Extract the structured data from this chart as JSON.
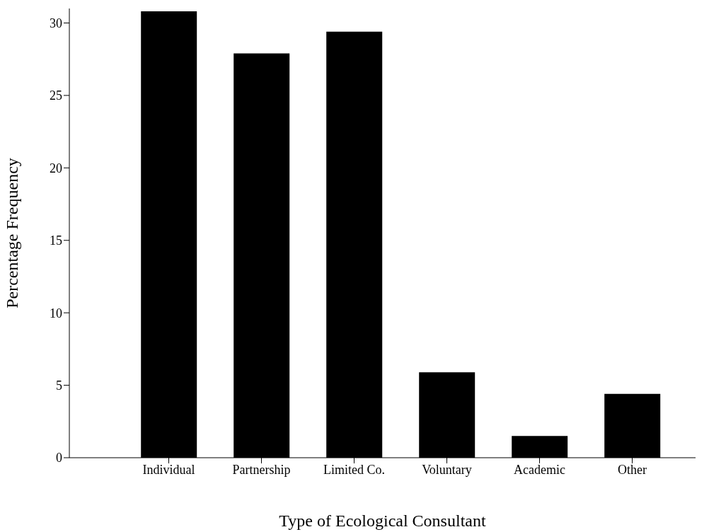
{
  "chart_data": {
    "type": "bar",
    "xlabel": "Type of Ecological Consultant",
    "ylabel": "Percentage Frequency",
    "categories": [
      "Individual",
      "Partnership",
      "Limited Co.",
      "Voluntary",
      "Academic",
      "Other"
    ],
    "values": [
      30.8,
      27.9,
      29.4,
      5.9,
      1.5,
      4.4
    ],
    "color": "#000000",
    "ylim": [
      0,
      31
    ],
    "yticks": [
      0,
      5,
      10,
      15,
      20,
      25,
      30
    ],
    "grid": false,
    "legend": false
  }
}
